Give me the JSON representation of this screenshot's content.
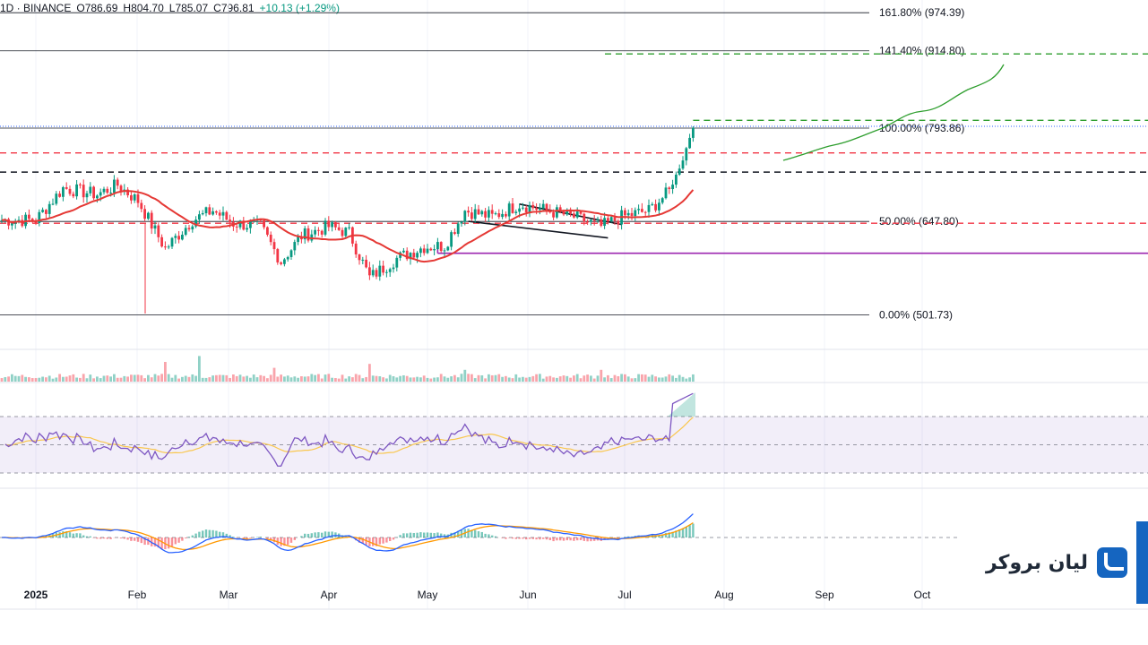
{
  "header": {
    "symbol": "1D · BINANCE",
    "open": "O786.69",
    "high": "H804.70",
    "low": "L785.07",
    "close": "C796.81",
    "change": "+10.13 (+1.29%)"
  },
  "colors": {
    "up": "#089981",
    "down": "#f23645",
    "ma": "#e53935",
    "rsi": "#7e57c2",
    "rsi_ma": "#f9c74f",
    "macd": "#2962ff",
    "signal": "#ff9800",
    "target": "#2e9e2e",
    "support": "#9c27b0",
    "accent": "#1565c0"
  },
  "chart_data": {
    "type": "candlestick",
    "timeframe": "1D",
    "exchange": "BINANCE",
    "x_labels": [
      "2025",
      "Feb",
      "Mar",
      "Apr",
      "May",
      "Jun",
      "Jul",
      "Aug",
      "Sep",
      "Oct"
    ],
    "fib_levels": [
      {
        "label": "161.80% (974.39)",
        "value": 974.39
      },
      {
        "label": "141.40% (914.80)",
        "value": 914.8
      },
      {
        "label": "100.00% (793.86)",
        "value": 793.86
      },
      {
        "label": "50.00% (647.80)",
        "value": 647.8
      },
      {
        "label": "0.00% (501.73)",
        "value": 501.73
      }
    ],
    "price_anchors": [
      {
        "d": 0,
        "p": 650
      },
      {
        "d": 8,
        "p": 700
      },
      {
        "d": 18,
        "p": 690
      },
      {
        "d": 24,
        "p": 705
      },
      {
        "d": 30,
        "p": 680
      },
      {
        "d": 38,
        "p": 605
      },
      {
        "d": 46,
        "p": 650
      },
      {
        "d": 52,
        "p": 665
      },
      {
        "d": 58,
        "p": 645
      },
      {
        "d": 66,
        "p": 640
      },
      {
        "d": 72,
        "p": 585
      },
      {
        "d": 78,
        "p": 625
      },
      {
        "d": 86,
        "p": 640
      },
      {
        "d": 92,
        "p": 630
      },
      {
        "d": 98,
        "p": 560
      },
      {
        "d": 106,
        "p": 590
      },
      {
        "d": 114,
        "p": 608
      },
      {
        "d": 120,
        "p": 610
      },
      {
        "d": 126,
        "p": 665
      },
      {
        "d": 134,
        "p": 655
      },
      {
        "d": 142,
        "p": 675
      },
      {
        "d": 150,
        "p": 665
      },
      {
        "d": 158,
        "p": 655
      },
      {
        "d": 166,
        "p": 640
      },
      {
        "d": 172,
        "p": 655
      },
      {
        "d": 180,
        "p": 665
      },
      {
        "d": 186,
        "p": 695
      },
      {
        "d": 190,
        "p": 745
      },
      {
        "d": 193,
        "p": 797
      }
    ],
    "levels": {
      "red_dashed_upper": 755,
      "black_dashed": 725,
      "red_dashed_lower": 645,
      "support_line": 598,
      "target_1": 806,
      "target_2": 910
    },
    "rsi_levels": [
      70,
      50,
      30
    ],
    "volume_spikes": [
      {
        "d": 38,
        "v": 1.0
      },
      {
        "d": 48,
        "v": 1.3
      },
      {
        "d": 70,
        "v": 0.7
      },
      {
        "d": 98,
        "v": 0.9
      },
      {
        "d": 126,
        "v": 0.6
      },
      {
        "d": 166,
        "v": 0.6
      }
    ]
  },
  "watermark": {
    "brand": "لیان بروکر"
  }
}
